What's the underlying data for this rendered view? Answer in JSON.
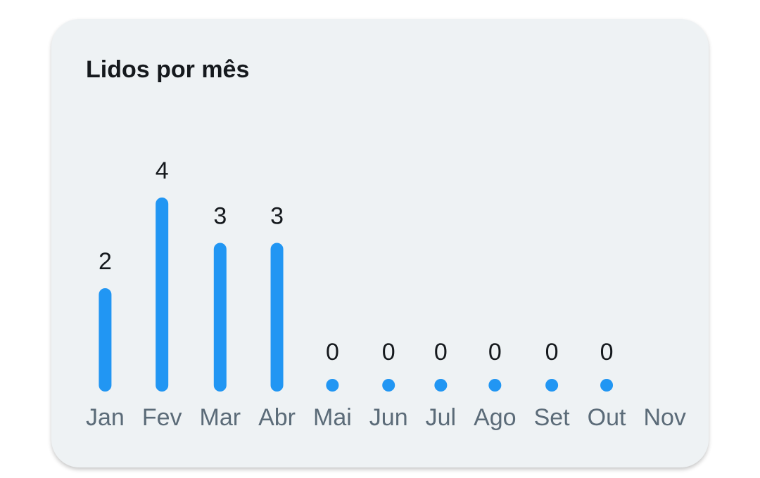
{
  "chart_data": {
    "type": "bar",
    "title": "Lidos por mês",
    "categories": [
      "Jan",
      "Fev",
      "Mar",
      "Abr",
      "Mai",
      "Jun",
      "Jul",
      "Ago",
      "Set",
      "Out",
      "Nov"
    ],
    "values": [
      2,
      4,
      3,
      3,
      0,
      0,
      0,
      0,
      0,
      0,
      null
    ],
    "color": "#2196f3"
  }
}
